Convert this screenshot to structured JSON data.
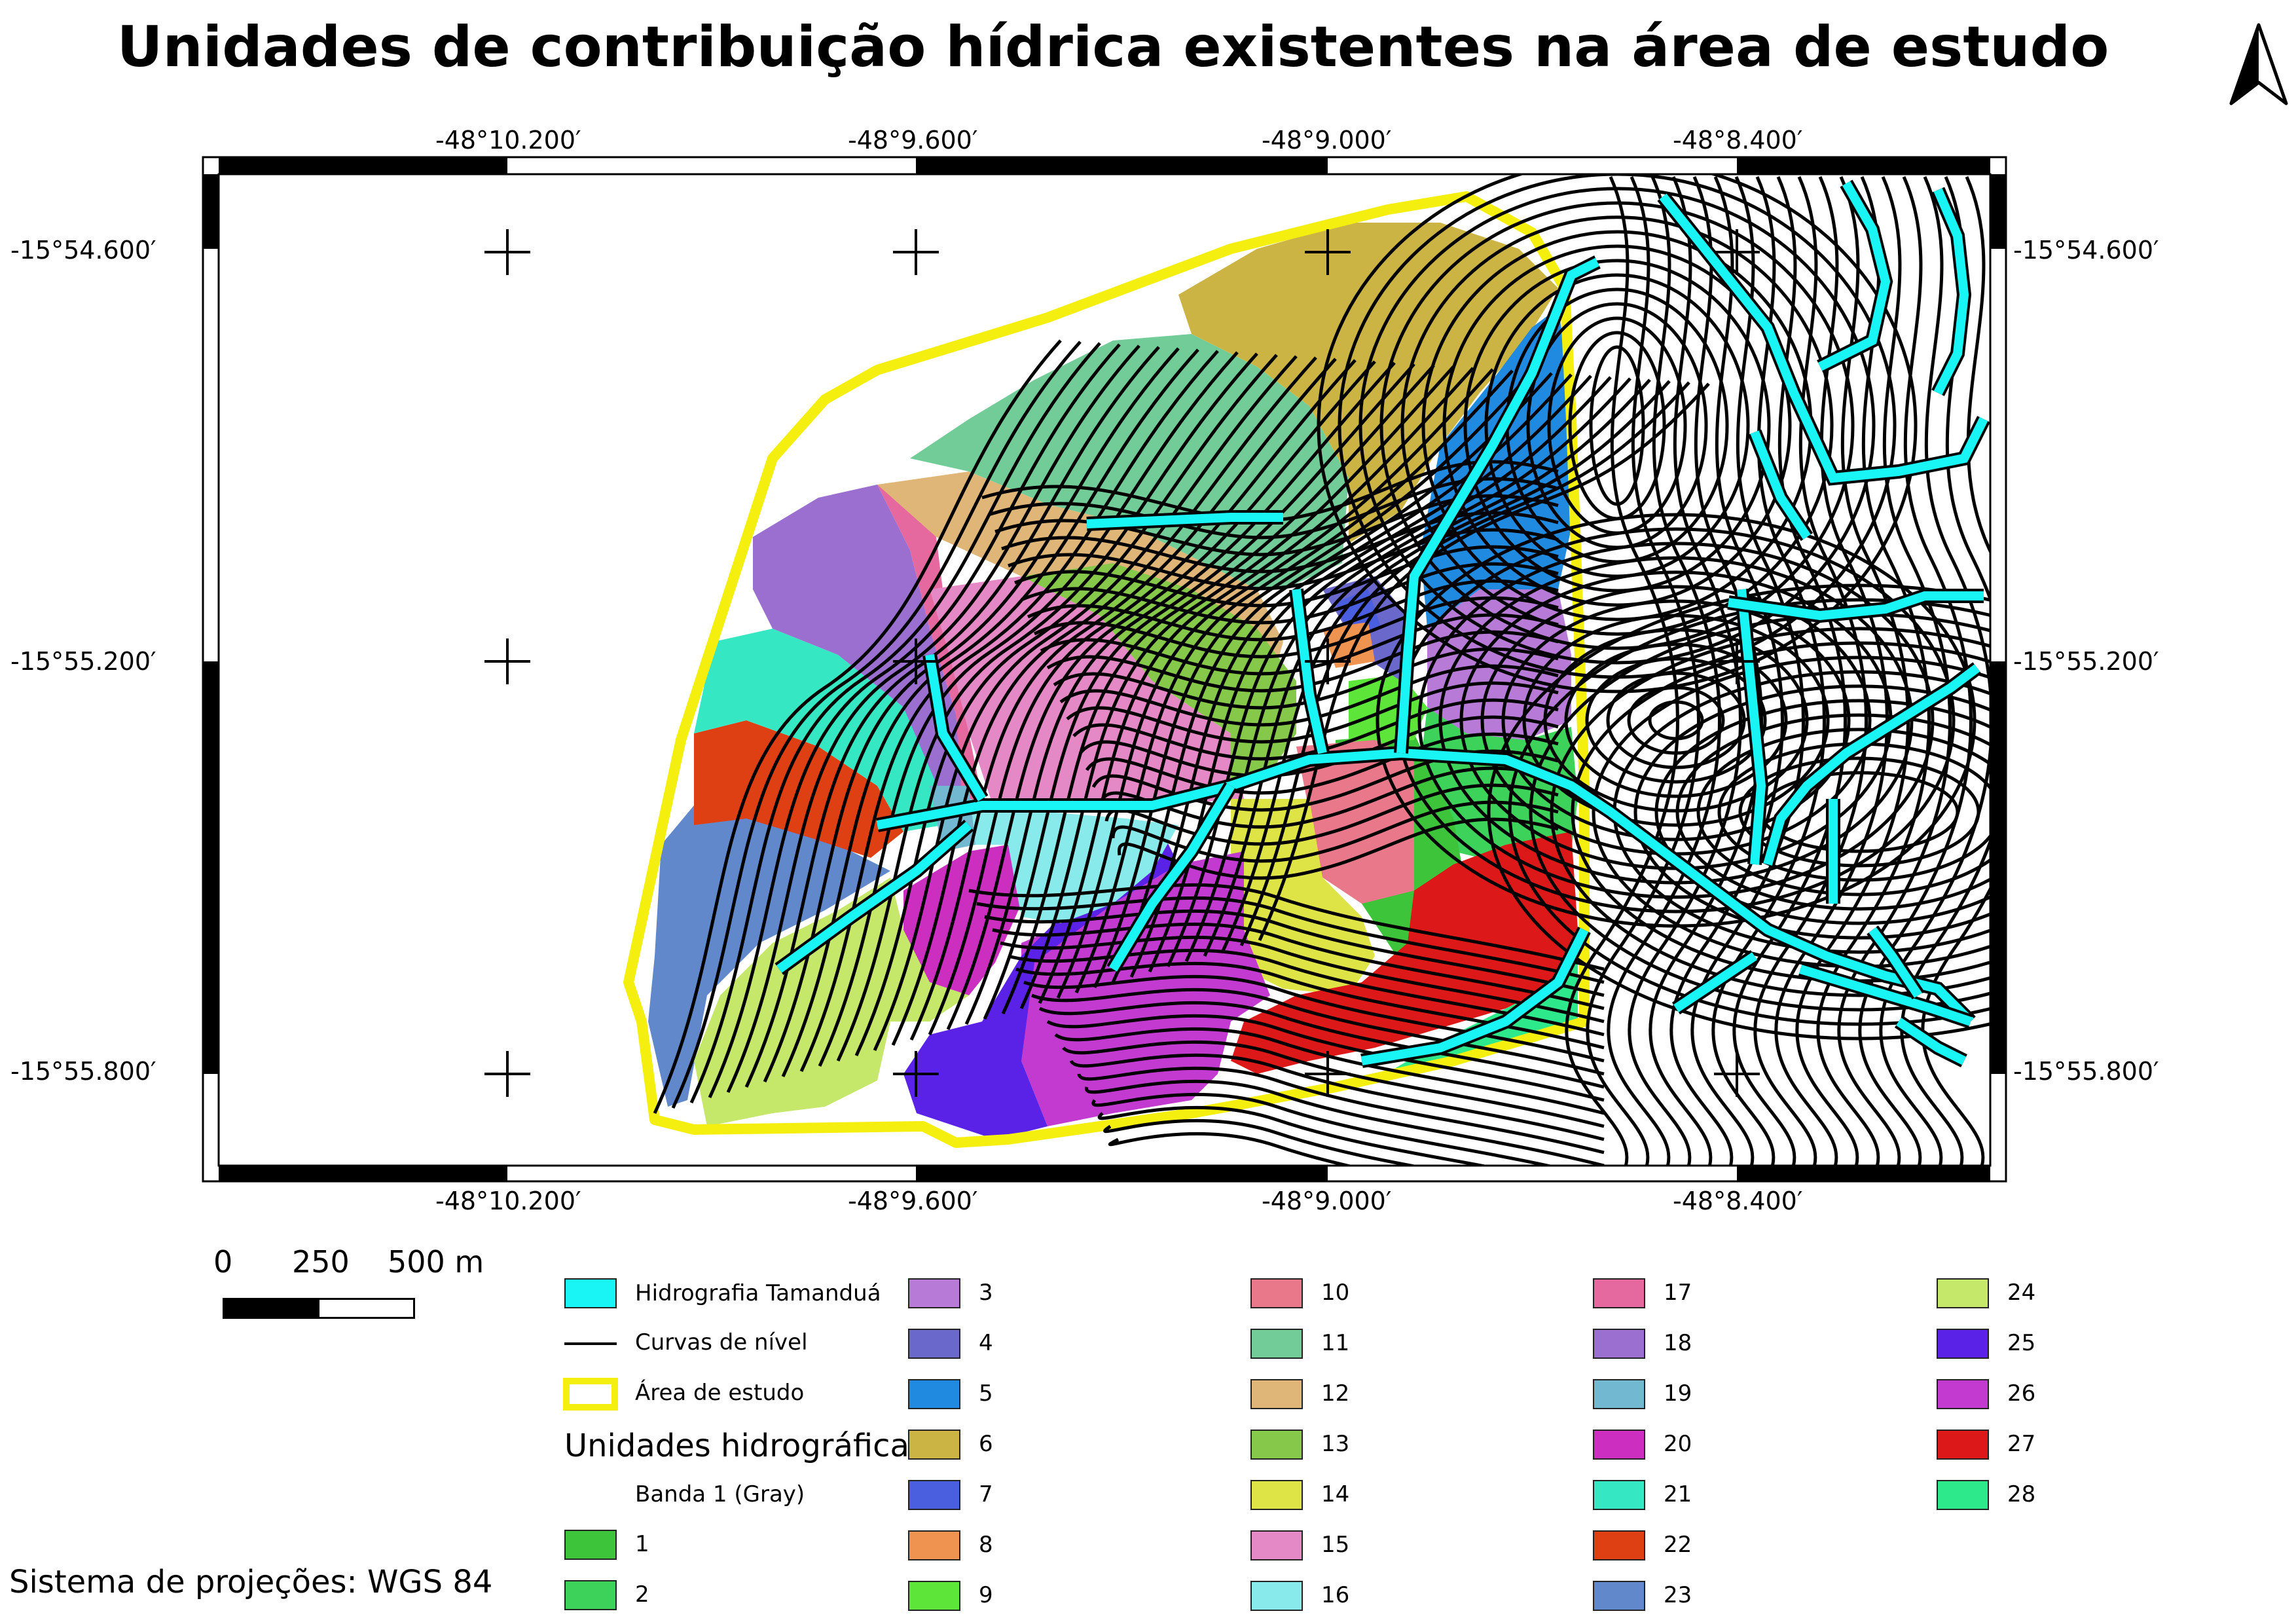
{
  "title": "Unidades de contribuição hídrica existentes na área de estudo",
  "grid": {
    "top_labels": [
      "-48°10.200′",
      "-48°9.600′",
      "-48°9.000′",
      "-48°8.400′"
    ],
    "bottom_labels": [
      "-48°10.200′",
      "-48°9.600′",
      "-48°9.000′",
      "-48°8.400′"
    ],
    "left_labels": [
      "-15°54.600′",
      "-15°55.200′",
      "-15°55.800′"
    ],
    "right_labels": [
      "-15°54.600′",
      "-15°55.200′",
      "-15°55.800′"
    ]
  },
  "scale": {
    "zero": "0",
    "mid": "250",
    "end": "500 m"
  },
  "legend": {
    "hydro_label": "Hidrografia Tamanduá",
    "contour_label": "Curvas de nível",
    "study_label": "Área de estudo",
    "units_heading": "Unidades hidrográficas",
    "band_label": "Banda 1 (Gray)",
    "colors": {
      "hydro": "#19f5f5",
      "study": "#f5ef0f",
      "contour": "#000000"
    },
    "units": [
      {
        "label": "1",
        "color": "#3ec43a"
      },
      {
        "label": "2",
        "color": "#3dd25a"
      },
      {
        "label": "3",
        "color": "#b77ad6"
      },
      {
        "label": "4",
        "color": "#6b68cc"
      },
      {
        "label": "5",
        "color": "#1f8ae0"
      },
      {
        "label": "6",
        "color": "#cbb443"
      },
      {
        "label": "7",
        "color": "#4a5ee0"
      },
      {
        "label": "8",
        "color": "#ee9350"
      },
      {
        "label": "9",
        "color": "#5ee53a"
      },
      {
        "label": "10",
        "color": "#e8788a"
      },
      {
        "label": "11",
        "color": "#72cc98"
      },
      {
        "label": "12",
        "color": "#e0b678"
      },
      {
        "label": "13",
        "color": "#86c84a"
      },
      {
        "label": "14",
        "color": "#dfe446"
      },
      {
        "label": "15",
        "color": "#e489c6"
      },
      {
        "label": "16",
        "color": "#88eaea"
      },
      {
        "label": "17",
        "color": "#e5689e"
      },
      {
        "label": "18",
        "color": "#9b6fd0"
      },
      {
        "label": "19",
        "color": "#72b8d0"
      },
      {
        "label": "20",
        "color": "#cc2fc0"
      },
      {
        "label": "21",
        "color": "#35e8c3"
      },
      {
        "label": "22",
        "color": "#de4014"
      },
      {
        "label": "23",
        "color": "#6288cc"
      },
      {
        "label": "24",
        "color": "#c5e86a"
      },
      {
        "label": "25",
        "color": "#5a22e6"
      },
      {
        "label": "26",
        "color": "#c23ad0"
      },
      {
        "label": "27",
        "color": "#dd1818"
      },
      {
        "label": "28",
        "color": "#2ee88c"
      }
    ]
  },
  "projection": "Sistema de projeções: WGS 84"
}
